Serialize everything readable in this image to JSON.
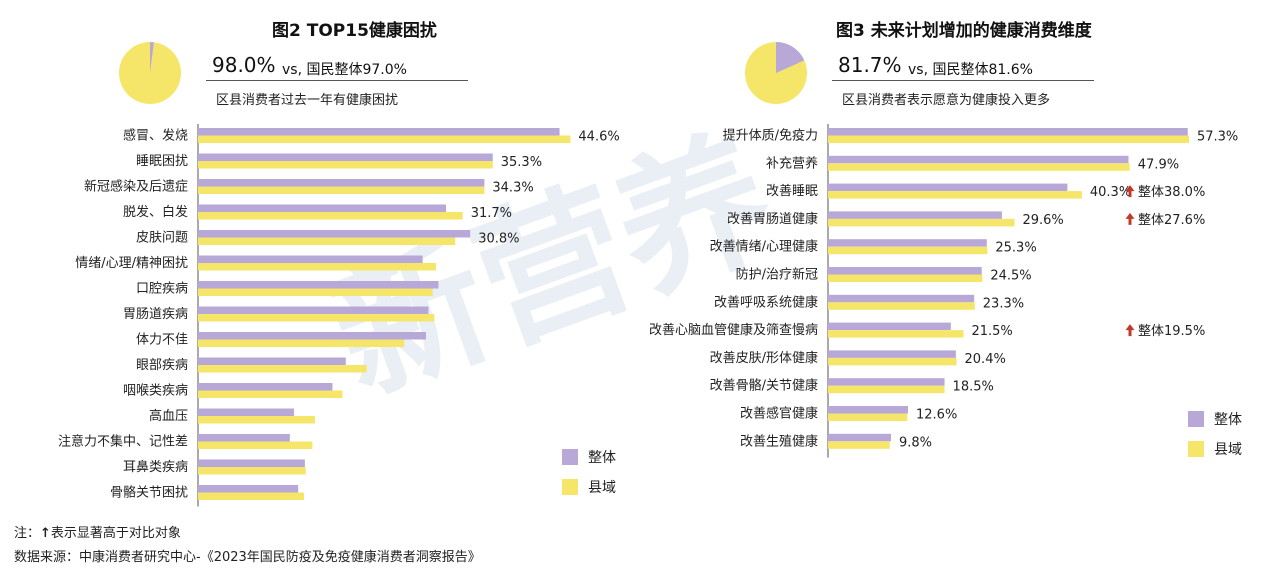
{
  "colors": {
    "overall": "#b8a8d8",
    "county": "#f5e66a",
    "pie_main": "#f5e66a",
    "pie_rest": "#b8a8d8",
    "arrow": "#c0392b"
  },
  "watermark": "新营养",
  "left": {
    "title": "图2 TOP15健康困扰",
    "pie_fraction": 0.98,
    "big_pct": "98.0%",
    "vs": "vs, 国民整体97.0%",
    "desc": "区县消费者过去一年有健康困扰"
  },
  "right": {
    "title": "图3 未来计划增加的健康消费维度",
    "pie_fraction": 0.817,
    "big_pct": "81.7%",
    "vs": "vs, 国民整体81.6%",
    "desc": "区县消费者表示愿意为健康投入更多"
  },
  "legend": {
    "overall": "整体",
    "county": "县域"
  },
  "footer": {
    "note_prefix": "注：",
    "note_text": "表示显著高于对比对象",
    "source": "数据来源：中康消费者研究中心-《2023年国民防疫及免疫健康消费者洞察报告》"
  },
  "chart_data": [
    {
      "type": "bar",
      "orientation": "horizontal",
      "title": "图2 TOP15健康困扰",
      "categories": [
        "感冒、发烧",
        "睡眠困扰",
        "新冠感染及后遗症",
        "脱发、白发",
        "皮肤问题",
        "情绪/心理/精神困扰",
        "口腔疾病",
        "胃肠道疾病",
        "体力不佳",
        "眼部疾病",
        "咽喉类疾病",
        "高血压",
        "注意力不集中、记性差",
        "耳鼻类疾病",
        "骨骼关节困扰"
      ],
      "series": [
        {
          "name": "整体",
          "values": [
            43.3,
            35.3,
            34.3,
            29.7,
            32.6,
            26.9,
            28.8,
            27.6,
            27.3,
            17.7,
            16.1,
            11.5,
            11.0,
            12.8,
            12.0
          ]
        },
        {
          "name": "县域",
          "values": [
            44.6,
            35.3,
            34.3,
            31.7,
            30.8,
            28.5,
            28.1,
            28.3,
            24.7,
            20.2,
            17.3,
            14.0,
            13.7,
            12.9,
            12.7
          ]
        }
      ],
      "data_labels": [
        "44.6%",
        "35.3%",
        "34.3%",
        "31.7%",
        "30.8%",
        "",
        "",
        "",
        "",
        "",
        "",
        "",
        "",
        "",
        ""
      ],
      "xlim": [
        0,
        50
      ]
    },
    {
      "type": "bar",
      "orientation": "horizontal",
      "title": "图3 未来计划增加的健康消费维度",
      "categories": [
        "提升体质/免疫力",
        "补充营养",
        "改善睡眠",
        "改善胃肠道健康",
        "改善情绪/心理健康",
        "防护/治疗新冠",
        "改善呼吸系统健康",
        "改善心脑血管健康及筛查慢病",
        "改善皮肤/形体健康",
        "改善骨骼/关节健康",
        "改善感官健康",
        "改善生殖健康"
      ],
      "series": [
        {
          "name": "整体",
          "values": [
            57.1,
            47.7,
            38.0,
            27.6,
            25.2,
            24.4,
            23.2,
            19.5,
            20.3,
            18.5,
            12.7,
            10.0
          ]
        },
        {
          "name": "县域",
          "values": [
            57.3,
            47.9,
            40.3,
            29.6,
            25.3,
            24.5,
            23.3,
            21.5,
            20.4,
            18.5,
            12.6,
            9.8
          ]
        }
      ],
      "data_labels": [
        "57.3%",
        "47.9%",
        "40.3%",
        "29.6%",
        "25.3%",
        "24.5%",
        "23.3%",
        "21.5%",
        "20.4%",
        "18.5%",
        "12.6%",
        "9.8%"
      ],
      "notes": [
        {
          "index": 2,
          "text": "整体38.0%"
        },
        {
          "index": 3,
          "text": "整体27.6%"
        },
        {
          "index": 7,
          "text": "整体19.5%"
        }
      ],
      "xlim": [
        0,
        60
      ]
    }
  ]
}
